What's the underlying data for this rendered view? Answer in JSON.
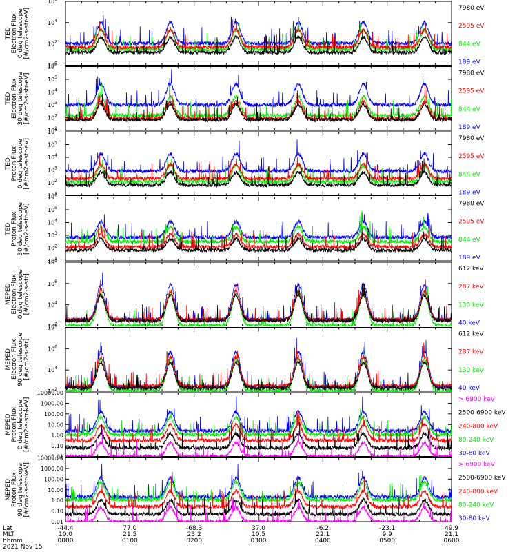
{
  "colors": {
    "black": "#000000",
    "red": "#ff0000",
    "green": "#00ee00",
    "blue": "#0000ff",
    "magenta": "#ff00ff"
  },
  "panels": [
    {
      "id": "ted-e-0",
      "ylabel": [
        "TED",
        "Electron Flux",
        "0 deg telescope",
        "[#/cm2-s-str-eV]"
      ],
      "yscale": "log",
      "ylim": [
        1,
        1000000.0
      ],
      "ticks": [
        "10^0",
        "10^2",
        "10^4",
        "10^6"
      ],
      "legend": [
        {
          "text": "7980 eV",
          "color": "black"
        },
        {
          "text": "2595 eV",
          "color": "red"
        },
        {
          "text": "844 eV",
          "color": "green"
        },
        {
          "text": "189 eV",
          "color": "blue"
        }
      ],
      "baseline": {
        "blue": 2.05,
        "green": 1.5,
        "red": 1.7,
        "black": 1.2
      },
      "peakScale": 0.6
    },
    {
      "id": "ted-e-30",
      "ylabel": [
        "TED",
        "Electron Flux",
        "30 deg telescope",
        "[#/cm2-s-str-eV]"
      ],
      "yscale": "log",
      "ylim": [
        1,
        1000000.0
      ],
      "ticks": [
        "10^1",
        "10^2",
        "10^3",
        "10^4",
        "10^5",
        "10^6"
      ],
      "legend": [
        {
          "text": "7980 eV",
          "color": "black"
        },
        {
          "text": "2595 eV",
          "color": "red"
        },
        {
          "text": "844 eV",
          "color": "green"
        },
        {
          "text": "189 eV",
          "color": "blue"
        }
      ],
      "baseline": {
        "blue": 2.4,
        "green": 1.4,
        "red": 1.1,
        "black": 1.0
      },
      "peakScale": 0.6
    },
    {
      "id": "ted-p-0",
      "ylabel": [
        "TED",
        "Proton Flux",
        "0 deg telescope",
        "[#/cm2-s-str-eV]"
      ],
      "yscale": "log",
      "ylim": [
        1,
        1000000.0
      ],
      "ticks": [
        "10^1",
        "10^2",
        "10^3",
        "10^4",
        "10^5",
        "10^6"
      ],
      "legend": [
        {
          "text": "7980 eV",
          "color": "black"
        },
        {
          "text": "2595 eV",
          "color": "red"
        },
        {
          "text": "844 eV",
          "color": "green"
        },
        {
          "text": "189 eV",
          "color": "blue"
        }
      ],
      "baseline": {
        "blue": 2.3,
        "green": 1.3,
        "red": 1.6,
        "black": 1.0
      },
      "peakScale": 0.5
    },
    {
      "id": "ted-p-30",
      "ylabel": [
        "TED",
        "Proton Flux",
        "30 deg telescope",
        "[#/cm2-s-str-eV]"
      ],
      "yscale": "log",
      "ylim": [
        1,
        1000000.0
      ],
      "ticks": [
        "10^1",
        "10^2",
        "10^3",
        "10^4",
        "10^5",
        "10^6"
      ],
      "legend": [
        {
          "text": "7980 eV",
          "color": "black"
        },
        {
          "text": "2595 eV",
          "color": "red"
        },
        {
          "text": "844 eV",
          "color": "green"
        },
        {
          "text": "189 eV",
          "color": "blue"
        }
      ],
      "baseline": {
        "blue": 2.2,
        "green": 1.8,
        "red": 1.3,
        "black": 1.0
      },
      "peakScale": 0.45
    },
    {
      "id": "meped-e-0",
      "ylabel": [
        "MEPED",
        "Electron Flux",
        "0 deg telescope",
        "[#/cm2-s-str]"
      ],
      "yscale": "log",
      "ylim": [
        100,
        100000000.0
      ],
      "ticks": [
        "10^2",
        "10^4",
        "10^6",
        "10^8"
      ],
      "legend": [
        {
          "text": "612 keV",
          "color": "black"
        },
        {
          "text": "287 keV",
          "color": "red"
        },
        {
          "text": "130 keV",
          "color": "green"
        },
        {
          "text": "40 keV",
          "color": "blue"
        }
      ],
      "baseline": {
        "blue": 2.6,
        "green": 2.05,
        "red": 2.6,
        "black": 2.5
      },
      "peakScale": 1.0
    },
    {
      "id": "meped-e-90",
      "ylabel": [
        "MEPED",
        "Electron Flux",
        "90 deg telescope",
        "[#/cm2-s-str]"
      ],
      "yscale": "log",
      "ylim": [
        100,
        100000000.0
      ],
      "ticks": [
        "10^2",
        "10^4",
        "10^6",
        "10^8"
      ],
      "legend": [
        {
          "text": "612 keV",
          "color": "black"
        },
        {
          "text": "287 keV",
          "color": "red"
        },
        {
          "text": "130 keV",
          "color": "green"
        },
        {
          "text": "40 keV",
          "color": "blue"
        }
      ],
      "baseline": {
        "blue": 2.4,
        "green": 2.05,
        "red": 2.5,
        "black": 2.3
      },
      "peakScale": 1.0
    },
    {
      "id": "meped-p-0",
      "ylabel": [
        "MEPED",
        "Proton Flux",
        "0 deg telescope",
        "[#/cm2-s-str-keV]"
      ],
      "yscale": "log",
      "ylim": [
        0.01,
        10000
      ],
      "ticks": [
        "0.01",
        "0.10",
        "1.00",
        "10.00",
        "100.00",
        "1000.00",
        "10000.00"
      ],
      "legend": [
        {
          "text": "> 6900 keV",
          "color": "magenta"
        },
        {
          "text": "2500-6900 keV",
          "color": "black"
        },
        {
          "text": "240-800 keV",
          "color": "red"
        },
        {
          "text": "80-240 keV",
          "color": "green"
        },
        {
          "text": "30-80 keV",
          "color": "blue"
        }
      ],
      "baseline": {
        "blue": 0.4,
        "green": 0.05,
        "red": -0.5,
        "black": -1.2,
        "magenta": -2.0
      },
      "peakScale": 0.55
    },
    {
      "id": "meped-p-90",
      "ylabel": [
        "MEPED",
        "Proton Flux",
        "90 deg telescope",
        "[#/cm2-s-str-keV]"
      ],
      "yscale": "log",
      "ylim": [
        0.01,
        10000
      ],
      "ticks": [
        "0.01",
        "0.10",
        "1.00",
        "10.00",
        "100.00",
        "1000.00",
        "10000.00"
      ],
      "legend": [
        {
          "text": "> 6900 keV",
          "color": "magenta"
        },
        {
          "text": "2500-6900 keV",
          "color": "black"
        },
        {
          "text": "240-800 keV",
          "color": "red"
        },
        {
          "text": "80-240 keV",
          "color": "green"
        },
        {
          "text": "30-80 keV",
          "color": "blue"
        }
      ],
      "baseline": {
        "blue": 0.3,
        "green": 0.05,
        "red": -0.6,
        "black": -1.3,
        "magenta": -2.0
      },
      "peakScale": 0.55
    }
  ],
  "chart_data": {
    "type": "line",
    "xlabel": "hhmm",
    "x_ticks": [
      "0000",
      "0100",
      "0200",
      "0300",
      "0400",
      "0500",
      "0600"
    ],
    "xlim_hours": [
      0,
      6
    ],
    "lat": [
      "-44.4",
      "77.0",
      "-68.3",
      "37.0",
      "-6.2",
      "-23.1",
      "49.9"
    ],
    "mlt": [
      "10.0",
      "21.5",
      "23.2",
      "10.5",
      "22.1",
      "9.9",
      "21.1"
    ],
    "row_labels": [
      "Lat",
      "MLT",
      "hhmm"
    ],
    "date": "2021 Nov 15",
    "radiation_belt_passes_hours": [
      0.55,
      1.63,
      2.65,
      3.62,
      4.63,
      5.58
    ],
    "grid": false
  }
}
